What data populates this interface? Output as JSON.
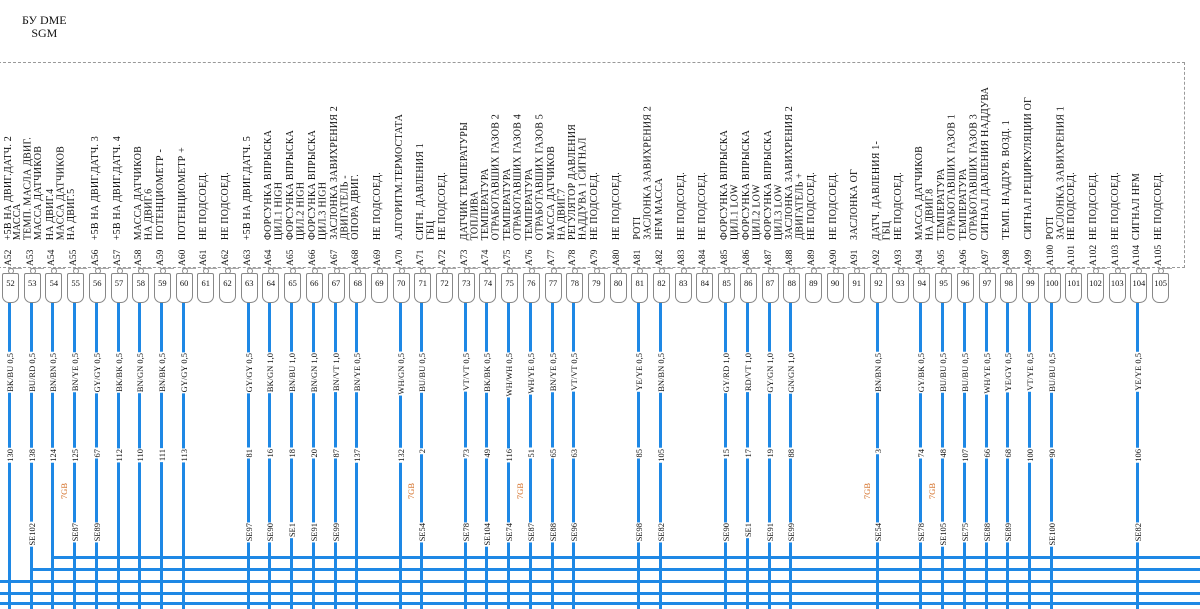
{
  "title": "БУ DME\nSGM",
  "colors": {
    "wire": "#1e88e5",
    "harness_tag": "#d2691e"
  },
  "pins": [
    {
      "pin": "52",
      "id": "A52",
      "label": "+5В НА ДВИГ.ДАТЧ. 2",
      "wire": "BK/BU 0,5",
      "num": "130",
      "se": ""
    },
    {
      "pin": "53",
      "id": "A53",
      "label": "МАССА\nТЕМП. МАСЛА ДВИГ.\nМАССА ДАТЧИКОВ",
      "wire": "BU/RD 0,5",
      "num": "138",
      "se": "SE102"
    },
    {
      "pin": "54",
      "id": "A54",
      "label": "НА ДВИГ.4\nМАССА ДАТЧИКОВ\nНА ДВИГ.5",
      "wire": "BN/BN 0,5",
      "num": "124",
      "se": ""
    },
    {
      "pin": "55",
      "id": "A55",
      "label": "",
      "wire": "BN/YE 0,5",
      "num": "125",
      "se": "SE87",
      "tag": "7GB"
    },
    {
      "pin": "56",
      "id": "A56",
      "label": "+5В НА ДВИГ.ДАТЧ. 3",
      "wire": "GY/GY 0,5",
      "num": "67",
      "se": "SE89"
    },
    {
      "pin": "57",
      "id": "A57",
      "label": "+5В НА ДВИГ.ДАТЧ. 4",
      "wire": "BK/BK 0,5",
      "num": "112",
      "se": ""
    },
    {
      "pin": "58",
      "id": "A58",
      "label": "МАССА ДАТЧИКОВ\nНА ДВИГ.6",
      "wire": "BN/GN 0,5",
      "num": "110",
      "se": ""
    },
    {
      "pin": "59",
      "id": "A59",
      "label": "ПОТЕНЦИОМЕТР -",
      "wire": "BN/BK 0,5",
      "num": "111",
      "se": ""
    },
    {
      "pin": "60",
      "id": "A60",
      "label": "ПОТЕНЦИОМЕТР +",
      "wire": "GY/GY 0,5",
      "num": "113",
      "se": ""
    },
    {
      "pin": "61",
      "id": "A61",
      "label": "НЕ ПОДСОЕД."
    },
    {
      "pin": "62",
      "id": "A62",
      "label": "НЕ ПОДСОЕД."
    },
    {
      "pin": "63",
      "id": "A63",
      "label": "+5В НА ДВИГ.ДАТЧ. 5",
      "wire": "GY/GY 0,5",
      "num": "81",
      "se": "SE97"
    },
    {
      "pin": "64",
      "id": "A64",
      "label": "ФОРСУНКА ВПРЫСКА\nЦИЛ.1 HIGH",
      "wire": "BK/GN 1,0",
      "num": "16",
      "se": "SE90"
    },
    {
      "pin": "65",
      "id": "A65",
      "label": "ФОРСУНКА ВПРЫСКА\nЦИЛ.2 HIGH",
      "wire": "BN/BU 1,0",
      "num": "18",
      "se": "SE1"
    },
    {
      "pin": "66",
      "id": "A66",
      "label": "ФОРСУНКА ВПРЫСКА\nЦИЛ.3 HIGH",
      "wire": "BN/GN 1,0",
      "num": "20",
      "se": "SE91"
    },
    {
      "pin": "67",
      "id": "A67",
      "label": "ЗАСЛОНКА ЗАВИХРЕНИЯ 2\nДВИГАТЕЛЬ -",
      "wire": "BN/VT 1,0",
      "num": "87",
      "se": "SE99"
    },
    {
      "pin": "68",
      "id": "A68",
      "label": "ОПОРА ДВИГ.",
      "wire": "BN/YE 0,5",
      "num": "137",
      "se": ""
    },
    {
      "pin": "69",
      "id": "A69",
      "label": "НЕ ПОДСОЕД."
    },
    {
      "pin": "70",
      "id": "A70",
      "label": "АЛГОРИТМ.ТЕРМОСТАТА",
      "wire": "WH/GN 0,5",
      "num": "132",
      "se": ""
    },
    {
      "pin": "71",
      "id": "A71",
      "label": "СИГН. ДАВЛЕНИЯ 1\nГБЦ",
      "wire": "BU/BU 0,5",
      "num": "2",
      "se": "SE54",
      "tag": "7GB"
    },
    {
      "pin": "72",
      "id": "A72",
      "label": "НЕ ПОДСОЕД."
    },
    {
      "pin": "73",
      "id": "A73",
      "label": "ДАТЧИК ТЕМПЕРАТУРЫ\nТОПЛИВА",
      "wire": "VT/VT 0,5",
      "num": "73",
      "se": "SE78"
    },
    {
      "pin": "74",
      "id": "A74",
      "label": "ТЕМПЕРАТУРА\nОТРАБОТАВШИХ ГАЗОВ 2",
      "wire": "BK/BK 0,5",
      "num": "49",
      "se": "SE104"
    },
    {
      "pin": "75",
      "id": "A75",
      "label": "ТЕМПЕРАТУРА\nОТРАБОТАВШИХ ГАЗОВ 4",
      "wire": "WH/WH 0,5",
      "num": "116",
      "se": "SE74"
    },
    {
      "pin": "76",
      "id": "A76",
      "label": "ТЕМПЕРАТУРА\nОТРАБОТАВШИХ ГАЗОВ 5",
      "wire": "WH/YE 0,5",
      "num": "51",
      "se": "SE87",
      "tag": "7GB"
    },
    {
      "pin": "77",
      "id": "A77",
      "label": "МАССА ДАТЧИКОВ\nНА ДВИГ.7",
      "wire": "BN/YE 0,5",
      "num": "65",
      "se": "SE88"
    },
    {
      "pin": "78",
      "id": "A78",
      "label": "РЕГУЛЯТОР ДАВЛЕНИЯ\nНАДДУВА 1 СИГНАЛ",
      "wire": "VT/VT 0,5",
      "num": "63",
      "se": "SE96"
    },
    {
      "pin": "79",
      "id": "A79",
      "label": "НЕ ПОДСОЕД."
    },
    {
      "pin": "80",
      "id": "A80",
      "label": "НЕ ПОДСОЕД."
    },
    {
      "pin": "81",
      "id": "A81",
      "label": "POTI\nЗАСЛОНКА ЗАВИХРЕНИЯ 2",
      "wire": "YE/YE 0,5",
      "num": "85",
      "se": "SE98"
    },
    {
      "pin": "82",
      "id": "A82",
      "label": "HFM МАССА",
      "wire": "BN/BN 0,5",
      "num": "105",
      "se": "SE82"
    },
    {
      "pin": "83",
      "id": "A83",
      "label": "НЕ ПОДСОЕД."
    },
    {
      "pin": "84",
      "id": "A84",
      "label": "НЕ ПОДСОЕД."
    },
    {
      "pin": "85",
      "id": "A85",
      "label": "ФОРСУНКА ВПРЫСКА\nЦИЛ.1 LOW",
      "wire": "GY/RD 1,0",
      "num": "15",
      "se": "SE90"
    },
    {
      "pin": "86",
      "id": "A86",
      "label": "ФОРСУНКА ВПРЫСКА\nЦИЛ.2 LOW",
      "wire": "RD/VT 1,0",
      "num": "17",
      "se": "SE1"
    },
    {
      "pin": "87",
      "id": "A87",
      "label": "ФОРСУНКА ВПРЫСКА\nЦИЛ.3 LOW",
      "wire": "GY/GN 1,0",
      "num": "19",
      "se": "SE91"
    },
    {
      "pin": "88",
      "id": "A88",
      "label": "ЗАСЛОНКА ЗАВИХРЕНИЯ 2\nДВИГАТЕЛЬ +",
      "wire": "GN/GN 1,0",
      "num": "88",
      "se": "SE99"
    },
    {
      "pin": "89",
      "id": "A89",
      "label": "НЕ ПОДСОЕД."
    },
    {
      "pin": "90",
      "id": "A90",
      "label": "НЕ ПОДСОЕД."
    },
    {
      "pin": "91",
      "id": "A91",
      "label": "ЗАСЛОНКА ОГ"
    },
    {
      "pin": "92",
      "id": "A92",
      "label": "ДАТЧ. ДАВЛЕНИЯ 1-\nГБЦ",
      "wire": "BN/BN 0,5",
      "num": "3",
      "se": "SE54",
      "tag": "7GB"
    },
    {
      "pin": "93",
      "id": "A93",
      "label": "НЕ ПОДСОЕД."
    },
    {
      "pin": "94",
      "id": "A94",
      "label": "МАССА ДАТЧИКОВ\nНА ДВИГ.8",
      "wire": "GY/BK 0,5",
      "num": "74",
      "se": "SE78"
    },
    {
      "pin": "95",
      "id": "A95",
      "label": "ТЕМПЕРАТУРА\nОТРАБОТАВШИХ ГАЗОВ 1",
      "wire": "BU/BU 0,5",
      "num": "48",
      "se": "SE105",
      "tag": "7GB"
    },
    {
      "pin": "96",
      "id": "A96",
      "label": "ТЕМПЕРАТУРА\nОТРАБОТАВШИХ ГАЗОВ 3",
      "wire": "BU/BU 0,5",
      "num": "107",
      "se": "SE75"
    },
    {
      "pin": "97",
      "id": "A97",
      "label": "СИГНАЛ ДАВЛЕНИЯ НАДДУВА",
      "wire": "WH/YE 0,5",
      "num": "66",
      "se": "SE88"
    },
    {
      "pin": "98",
      "id": "A98",
      "label": "ТЕМП. НАДДУВ. ВОЗД. 1",
      "wire": "YE/GY 0,5",
      "num": "68",
      "se": "SE89"
    },
    {
      "pin": "99",
      "id": "A99",
      "label": "СИГНАЛ РЕЦИРКУЛЯЦИИ ОГ",
      "wire": "VT/YE 0,5",
      "num": "100",
      "se": ""
    },
    {
      "pin": "100",
      "id": "A100",
      "label": "POTI\nЗАСЛОНКА ЗАВИХРЕНИЯ 1",
      "wire": "BU/BU 0,5",
      "num": "90",
      "se": "SE100"
    },
    {
      "pin": "101",
      "id": "A101",
      "label": "НЕ ПОДСОЕД."
    },
    {
      "pin": "102",
      "id": "A102",
      "label": "НЕ ПОДСОЕД."
    },
    {
      "pin": "103",
      "id": "A103",
      "label": "НЕ ПОДСОЕД."
    },
    {
      "pin": "104",
      "id": "A104",
      "label": "СИГНАЛ HFM",
      "wire": "YE/YE 0,5",
      "num": "106",
      "se": "SE82"
    },
    {
      "pin": "105",
      "id": "A105",
      "label": "НЕ ПОДСОЕД."
    }
  ]
}
